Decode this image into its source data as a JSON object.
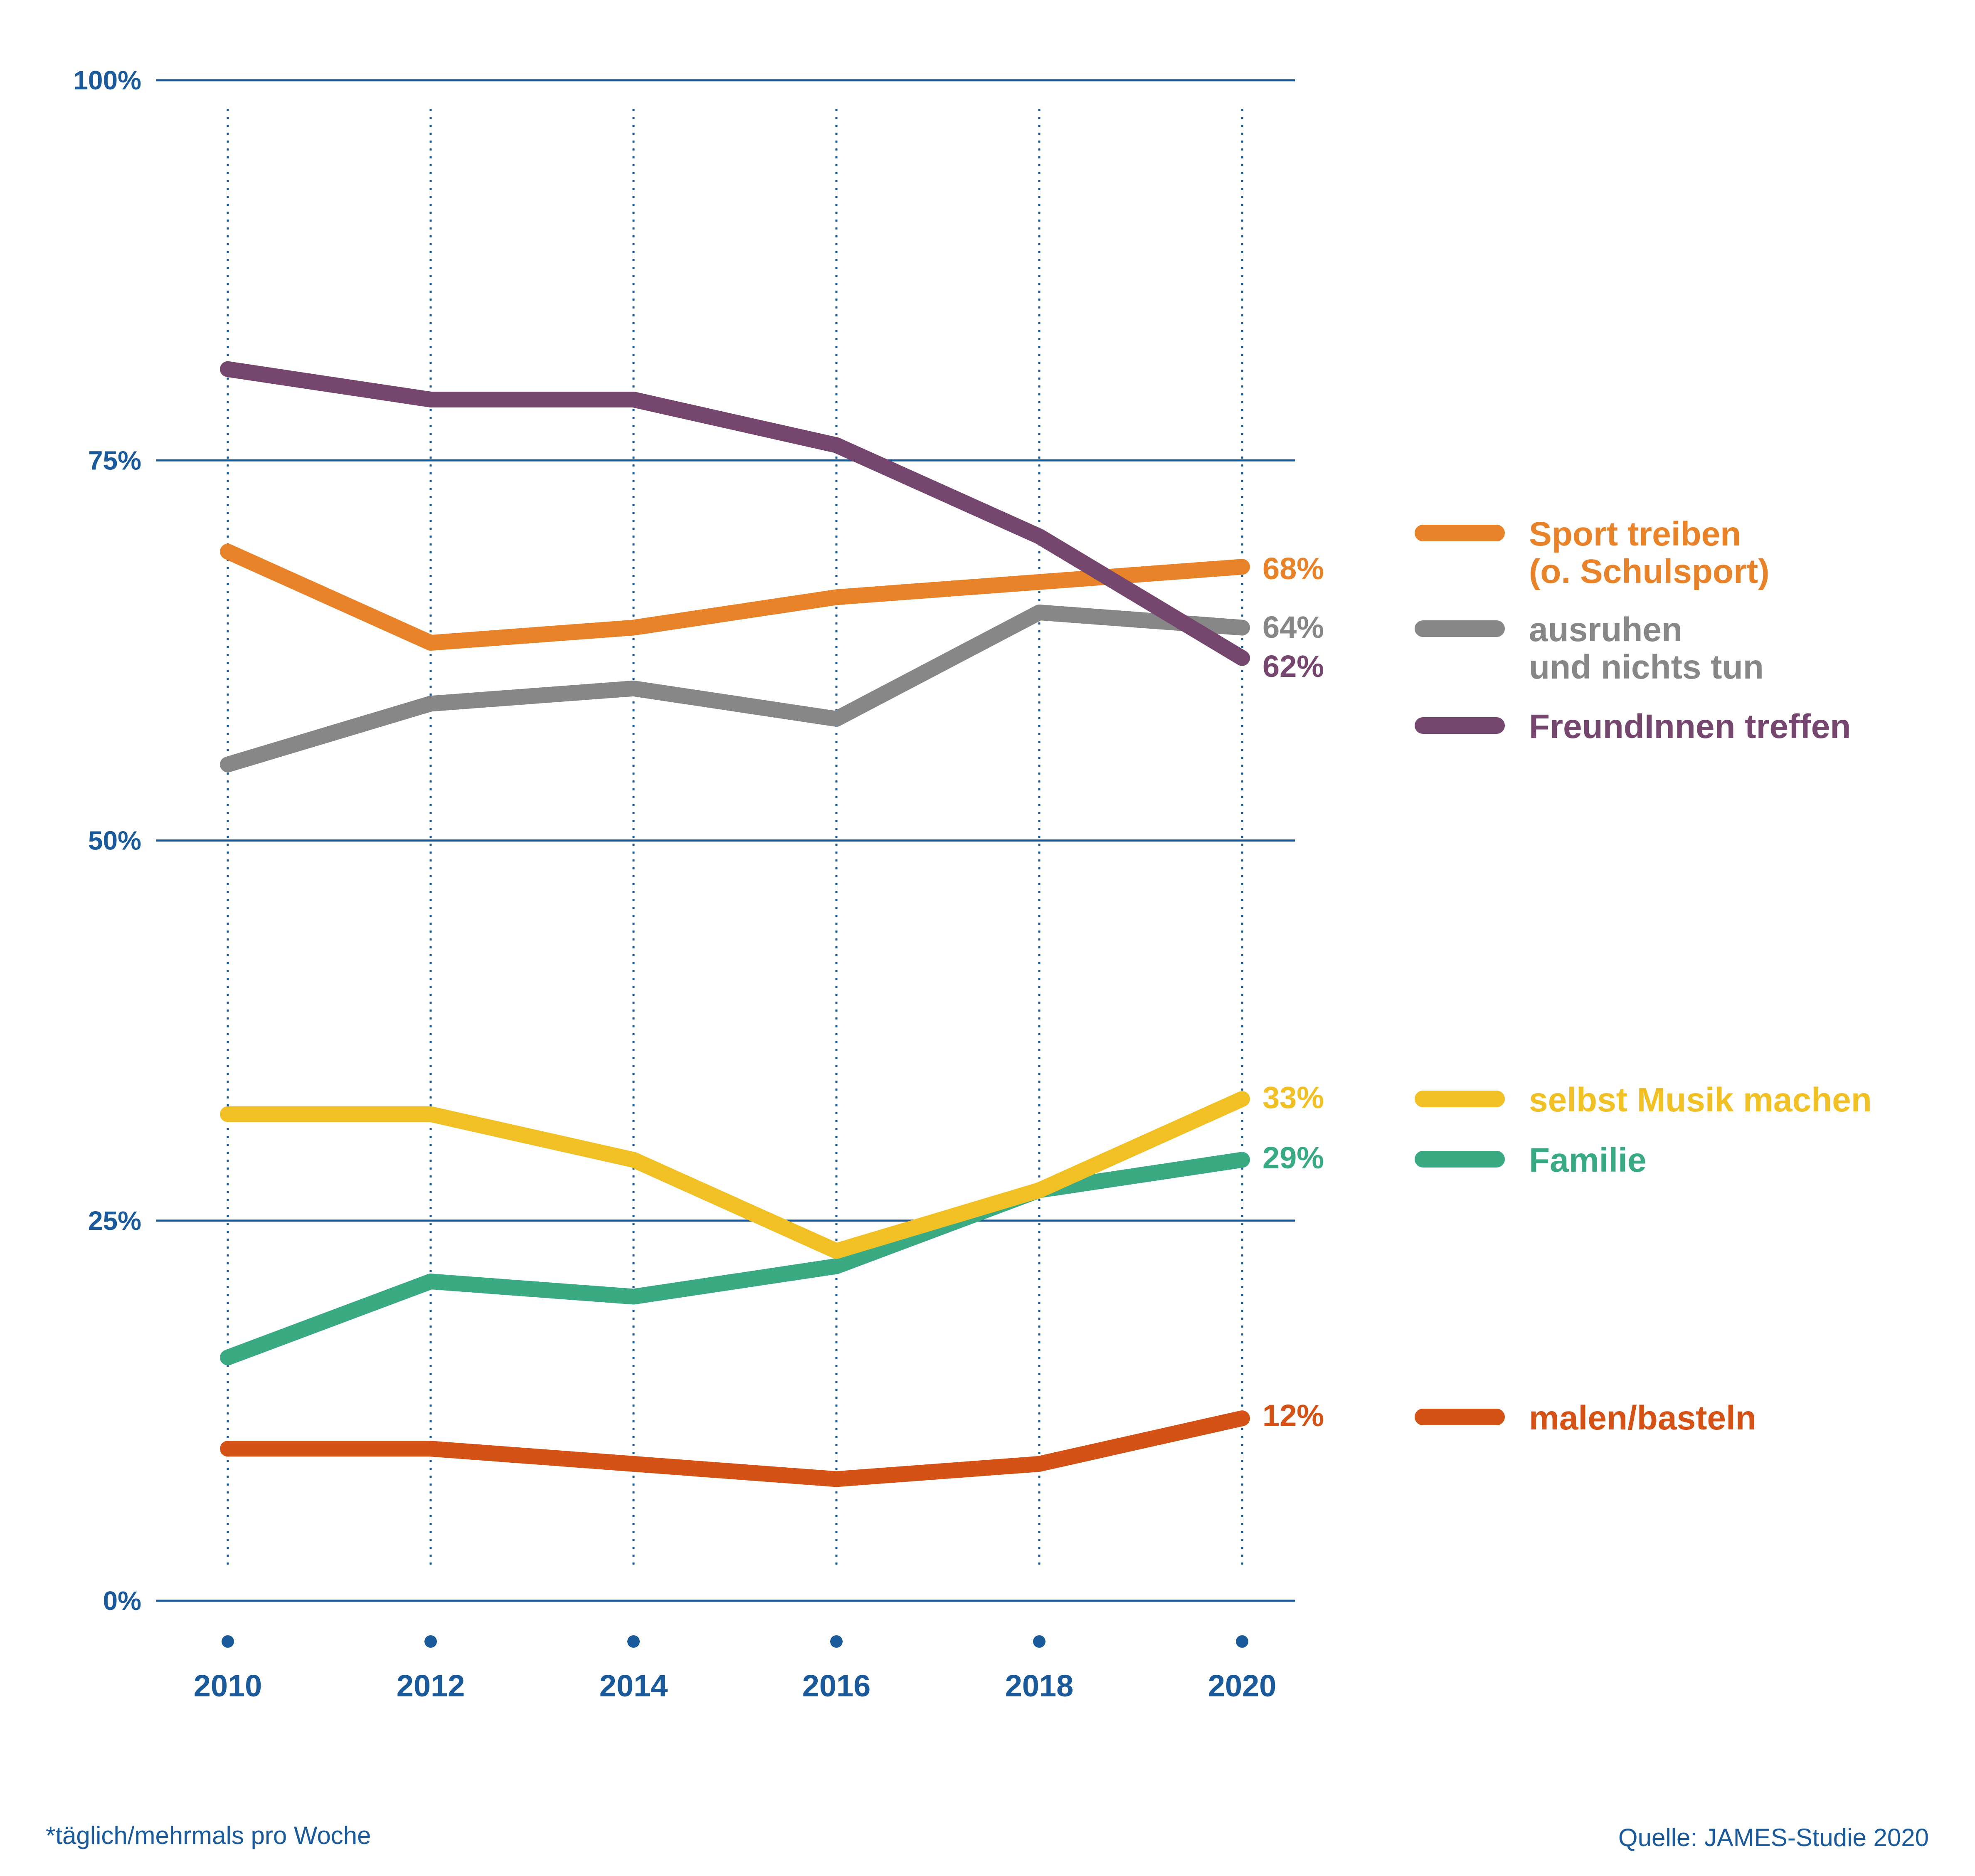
{
  "chart_data": {
    "type": "line",
    "x": [
      2010,
      2012,
      2014,
      2016,
      2018,
      2020
    ],
    "ylim": [
      0,
      100
    ],
    "y_ticks": [
      {
        "value": 0,
        "label": "0%"
      },
      {
        "value": 25,
        "label": "25%"
      },
      {
        "value": 50,
        "label": "50%"
      },
      {
        "value": 75,
        "label": "75%"
      },
      {
        "value": 100,
        "label": "100%"
      }
    ],
    "x_tick_labels": [
      "2010",
      "2012",
      "2014",
      "2016",
      "2018",
      "2020"
    ],
    "grid": "horizontal solid at y ticks, vertical dotted at each year",
    "legend_placement": "right",
    "series": [
      {
        "name": "Sport treiben (o. Schulsport)",
        "legend_lines": [
          "Sport treiben",
          "(o. Schulsport)"
        ],
        "end_label": "68%",
        "color": "#e8832a",
        "values": [
          69,
          63,
          64,
          66,
          67,
          68
        ]
      },
      {
        "name": "ausruhen und nichts tun",
        "legend_lines": [
          "ausruhen",
          "und nichts tun"
        ],
        "end_label": "64%",
        "color": "#878787",
        "values": [
          55,
          59,
          60,
          58,
          65,
          64
        ]
      },
      {
        "name": "FreundInnen treffen",
        "legend_lines": [
          "FreundInnen treffen"
        ],
        "end_label": "62%",
        "color": "#76476e",
        "values": [
          81,
          79,
          79,
          76,
          70,
          62
        ]
      },
      {
        "name": "selbst Musik machen",
        "legend_lines": [
          "selbst Musik machen"
        ],
        "end_label": "33%",
        "color": "#f0c024",
        "values": [
          32,
          32,
          29,
          23,
          27,
          33
        ]
      },
      {
        "name": "Familie",
        "legend_lines": [
          "Familie"
        ],
        "end_label": "29%",
        "color": "#3aaa82",
        "values": [
          16,
          21,
          20,
          22,
          27,
          29
        ]
      },
      {
        "name": "malen/basteln",
        "legend_lines": [
          "malen/basteln"
        ],
        "end_label": "12%",
        "color": "#d55216",
        "values": [
          10,
          10,
          9,
          8,
          9,
          12
        ]
      }
    ],
    "footnote": "*täglich/mehrmals pro Woche",
    "source": "Quelle: JAMES-Studie 2020",
    "axis_color": "#1a5a9a"
  }
}
